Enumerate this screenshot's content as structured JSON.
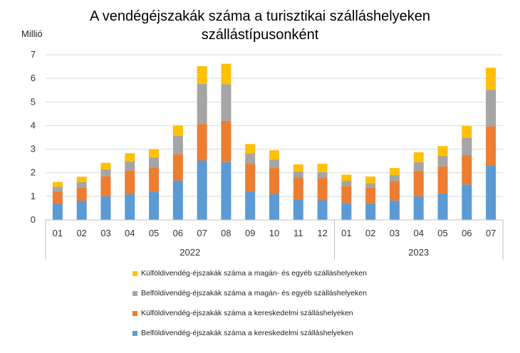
{
  "title_line1": "A vendégéjszakák száma a turisztikai szálláshelyeken",
  "title_line2": "szállástípusonként",
  "chart_data": {
    "type": "bar",
    "stacked": true,
    "unit_label": "Millió",
    "ylim": [
      0,
      7
    ],
    "yticks": [
      "0",
      "1",
      "2",
      "3",
      "4",
      "5",
      "6",
      "7"
    ],
    "grid": true,
    "legend_position": "bottom",
    "categories": [
      "01",
      "02",
      "03",
      "04",
      "05",
      "06",
      "07",
      "08",
      "09",
      "10",
      "11",
      "12",
      "01",
      "02",
      "03",
      "04",
      "05",
      "06",
      "07"
    ],
    "groups": [
      {
        "label": "2022",
        "count": 12
      },
      {
        "label": "2023",
        "count": 7
      }
    ],
    "series": [
      {
        "name": "Belföldivendég-éjszakák száma a kereskedelmi szálláshelyeken",
        "color": "#5B9BD5",
        "values": [
          0.68,
          0.8,
          1.0,
          1.1,
          1.2,
          1.67,
          2.52,
          2.45,
          1.22,
          1.1,
          0.88,
          0.83,
          0.72,
          0.7,
          0.82,
          1.0,
          1.12,
          1.5,
          2.32
        ]
      },
      {
        "name": "Külföldivendég-éjszakák száma a kereskedelmi szálláshelyeken",
        "color": "#ED7D31",
        "values": [
          0.53,
          0.57,
          0.85,
          1.0,
          1.03,
          1.13,
          1.55,
          1.75,
          1.15,
          1.1,
          0.92,
          0.95,
          0.72,
          0.68,
          0.83,
          1.08,
          1.15,
          1.25,
          1.65
        ]
      },
      {
        "name": "Belföldivendég-éjszakák száma a magán- és egyéb szálláshelyeken",
        "color": "#A5A5A5",
        "values": [
          0.2,
          0.23,
          0.3,
          0.38,
          0.42,
          0.77,
          1.7,
          1.55,
          0.45,
          0.35,
          0.25,
          0.25,
          0.22,
          0.18,
          0.25,
          0.37,
          0.43,
          0.73,
          1.55
        ]
      },
      {
        "name": "Külföldivendég-éjszakák száma a magán- és egyéb szálláshelyeken",
        "color": "#FFC000",
        "values": [
          0.2,
          0.23,
          0.27,
          0.35,
          0.35,
          0.43,
          0.75,
          0.87,
          0.4,
          0.4,
          0.3,
          0.35,
          0.26,
          0.28,
          0.3,
          0.42,
          0.43,
          0.5,
          0.93
        ]
      }
    ]
  }
}
